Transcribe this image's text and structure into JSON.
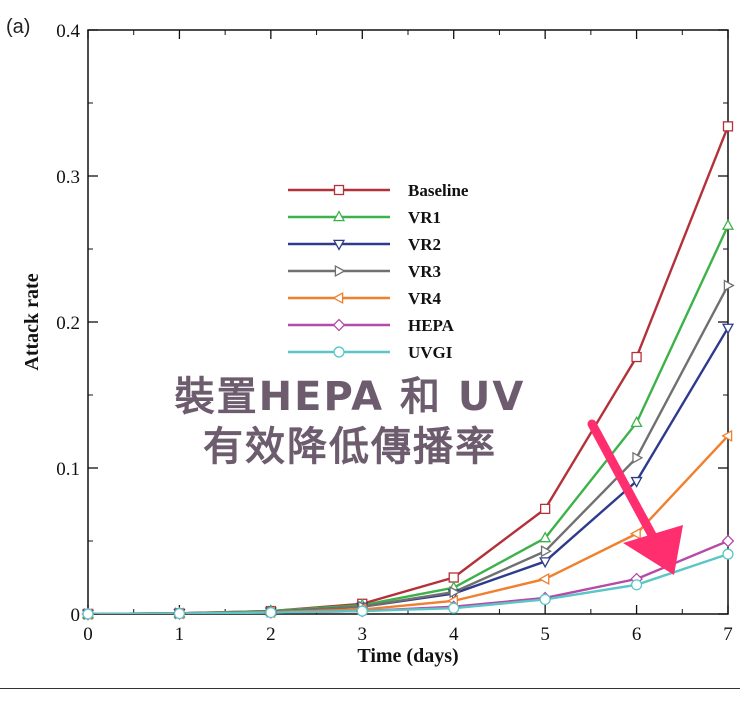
{
  "panel_label": "(a)",
  "overlay": {
    "line1": "裝置HEPA 和 UV",
    "line2": "有效降低傳播率",
    "text_color": "#6d5c6e",
    "arrow_color": "#ff2e6e"
  },
  "chart_data": {
    "type": "line",
    "title": "",
    "xlabel": "Time (days)",
    "ylabel": "Attack rate",
    "xlim": [
      0,
      7
    ],
    "ylim": [
      0,
      0.4
    ],
    "xticks": [
      0,
      1,
      2,
      3,
      4,
      5,
      6,
      7
    ],
    "yticks": [
      0,
      0.1,
      0.2,
      0.3,
      0.4
    ],
    "xtick_labels": [
      "0",
      "1",
      "2",
      "3",
      "4",
      "5",
      "6",
      "7"
    ],
    "ytick_labels": [
      "0",
      "0.1",
      "0.2",
      "0.3",
      "0.4"
    ],
    "x": [
      0,
      1,
      2,
      3,
      4,
      5,
      6,
      7
    ],
    "legend_position": "center-left",
    "series": [
      {
        "name": "Baseline",
        "color": "#b5313a",
        "marker": "square",
        "values": [
          0.0,
          0.0005,
          0.002,
          0.007,
          0.025,
          0.072,
          0.176,
          0.334
        ]
      },
      {
        "name": "VR1",
        "color": "#3db24a",
        "marker": "triangle-up",
        "values": [
          0.0,
          0.0005,
          0.002,
          0.006,
          0.018,
          0.052,
          0.131,
          0.266
        ]
      },
      {
        "name": "VR2",
        "color": "#2e3b8c",
        "marker": "triangle-down",
        "values": [
          0.0,
          0.0005,
          0.0015,
          0.005,
          0.014,
          0.036,
          0.091,
          0.196
        ]
      },
      {
        "name": "VR3",
        "color": "#707070",
        "marker": "triangle-right",
        "values": [
          0.0,
          0.0005,
          0.0015,
          0.005,
          0.015,
          0.043,
          0.107,
          0.225
        ]
      },
      {
        "name": "VR4",
        "color": "#f07f2e",
        "marker": "triangle-left",
        "values": [
          0.0,
          0.0004,
          0.0012,
          0.003,
          0.009,
          0.024,
          0.055,
          0.122
        ]
      },
      {
        "name": "HEPA",
        "color": "#b54aa8",
        "marker": "diamond",
        "values": [
          0.0,
          0.0003,
          0.001,
          0.002,
          0.005,
          0.011,
          0.024,
          0.05
        ]
      },
      {
        "name": "UVGI",
        "color": "#5cc6c6",
        "marker": "circle",
        "values": [
          0.0,
          0.0003,
          0.001,
          0.002,
          0.004,
          0.01,
          0.02,
          0.041
        ]
      }
    ]
  }
}
